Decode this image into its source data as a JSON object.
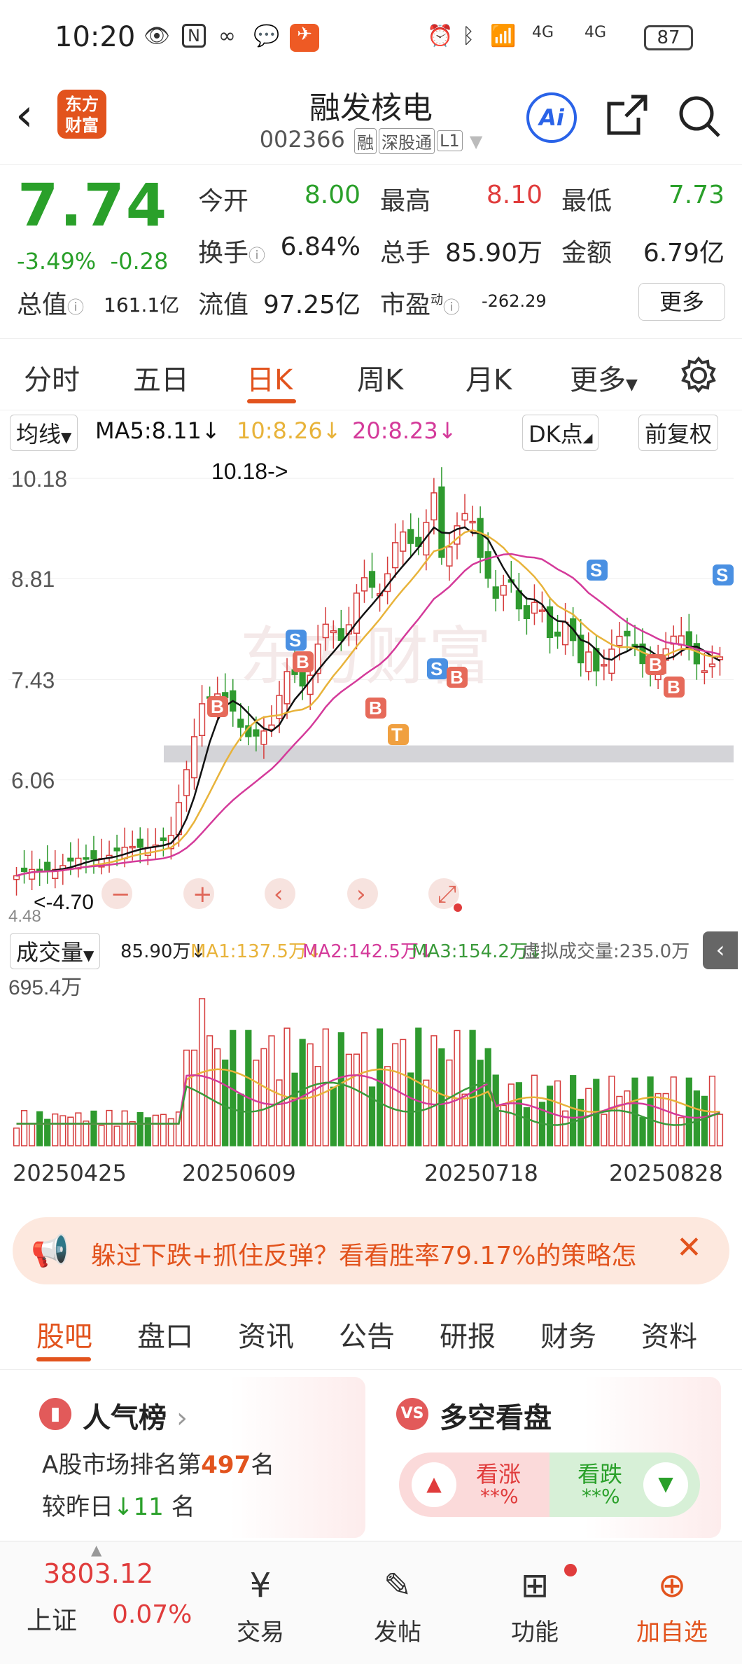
{
  "status": {
    "time": "10:20",
    "battery": "87",
    "signal1": "4G",
    "signal2": "4G"
  },
  "header": {
    "back": "‹",
    "logo": "东方财富",
    "title": "融发核电",
    "code": "002366",
    "tags": [
      "融",
      "深股通",
      "L1"
    ],
    "ai": "Ai"
  },
  "quote": {
    "price": "7.74",
    "change_pct": "-3.49%",
    "change": "-0.28",
    "rows": [
      [
        {
          "label": "今开",
          "value": "8.00",
          "color": "#2aa02a"
        },
        {
          "label": "最高",
          "value": "8.10",
          "color": "#e03c3c"
        },
        {
          "label": "最低",
          "value": "7.73",
          "color": "#2aa02a"
        }
      ],
      [
        {
          "label": "换手",
          "value": "6.84%",
          "color": "#222"
        },
        {
          "label": "总手",
          "value": "85.90万",
          "color": "#222"
        },
        {
          "label": "金额",
          "value": "6.79亿",
          "color": "#222"
        }
      ],
      [
        {
          "label": "总值",
          "value": "161.1亿",
          "color": "#222"
        },
        {
          "label": "流值",
          "value": "97.25亿",
          "color": "#222"
        },
        {
          "label": "市盈",
          "value": "-262.29",
          "color": "#222",
          "sup": "动"
        }
      ]
    ],
    "more": "更多"
  },
  "tabs": [
    {
      "label": "分时"
    },
    {
      "label": "五日"
    },
    {
      "label": "日K",
      "active": true
    },
    {
      "label": "周K"
    },
    {
      "label": "月K"
    },
    {
      "label": "更多"
    }
  ],
  "mabar": {
    "type": "均线",
    "ma5": "MA5:8.11",
    "ma10": "10:8.26",
    "ma20": "20:8.23",
    "dk": "DK点",
    "fq": "前复权"
  },
  "chart_data": {
    "type": "candlestick",
    "ylim": [
      4.7,
      10.18
    ],
    "y_ticks": [
      "10.18",
      "8.81",
      "7.43",
      "6.06"
    ],
    "high_label": "10.18->",
    "low_label": "<-4.70",
    "low_tick": "4.48",
    "signals": [
      "B",
      "S",
      "B",
      "S",
      "B",
      "B",
      "T",
      "S",
      "B",
      "B",
      "S"
    ],
    "x_labels": [
      "20250425",
      "20250609",
      "20250718",
      "20250828"
    ],
    "ma_colors": {
      "ma5": "#111111",
      "ma10": "#e8b33a",
      "ma20": "#d43a9a"
    }
  },
  "volume": {
    "label": "成交量",
    "current": "85.90万",
    "ma1": "MA1:137.5万",
    "ma2": "MA2:142.5万",
    "ma3": "MA3:154.2万",
    "virtual": "虚拟成交量:235.0万",
    "max": "695.4万"
  },
  "banner": {
    "text": "躲过下跌+抓住反弹？看看胜率79.17%的策略怎"
  },
  "subtabs": [
    {
      "label": "股吧",
      "active": true
    },
    {
      "label": "盘口"
    },
    {
      "label": "资讯"
    },
    {
      "label": "公告"
    },
    {
      "label": "研报"
    },
    {
      "label": "财务"
    },
    {
      "label": "资料"
    }
  ],
  "cards": {
    "popular": {
      "title": "人气榜",
      "rank_prefix": "A股市场排名第",
      "rank": "497",
      "rank_suffix": "名",
      "cmp_prefix": "较昨日",
      "cmp": "11",
      "cmp_suffix": "名"
    },
    "bullbear": {
      "title": "多空看盘",
      "up": "看涨",
      "up_val": "**%",
      "down": "看跌",
      "down_val": "**%"
    }
  },
  "bottom": {
    "index_value": "3803.12",
    "index_name": "上证",
    "index_pct": "0.07%",
    "trade": "交易",
    "post": "发帖",
    "func": "功能",
    "watch": "加自选"
  }
}
